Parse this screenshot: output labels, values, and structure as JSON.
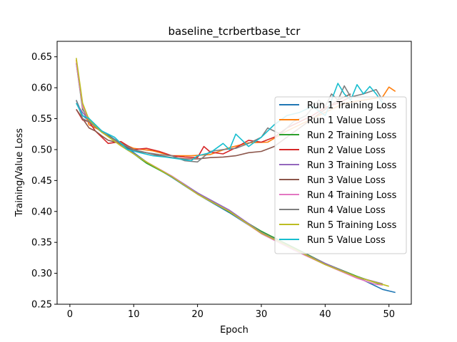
{
  "chart_data": {
    "type": "line",
    "title": "baseline_tcrbertbase_tcr",
    "xlabel": "Epoch",
    "ylabel": "Training/Value Loss",
    "xlim": [
      -2,
      53.5
    ],
    "ylim": [
      0.25,
      0.675
    ],
    "xticks": [
      0,
      10,
      20,
      30,
      40,
      50
    ],
    "yticks": [
      0.25,
      0.3,
      0.35,
      0.4,
      0.45,
      0.5,
      0.55,
      0.6,
      0.65
    ],
    "ytick_labels": [
      "0.25",
      "0.30",
      "0.35",
      "0.40",
      "0.45",
      "0.50",
      "0.55",
      "0.60",
      "0.65"
    ],
    "grid": false,
    "legend_position": "center-right",
    "series": [
      {
        "name": "Run 1 Training Loss",
        "color": "#1f77b4",
        "x": [
          1,
          2,
          3,
          5,
          8,
          12,
          16,
          20,
          25,
          30,
          35,
          40,
          45,
          49,
          51
        ],
        "values": [
          0.58,
          0.555,
          0.547,
          0.53,
          0.51,
          0.48,
          0.455,
          0.428,
          0.398,
          0.365,
          0.34,
          0.315,
          0.294,
          0.274,
          0.269
        ]
      },
      {
        "name": "Run 1 Value Loss",
        "color": "#ff7f0e",
        "x": [
          1,
          2,
          3,
          5,
          7,
          10,
          13,
          16,
          19,
          22,
          25,
          28,
          31,
          34,
          37,
          40,
          43,
          46,
          49,
          50,
          51
        ],
        "values": [
          0.645,
          0.57,
          0.54,
          0.53,
          0.515,
          0.502,
          0.498,
          0.49,
          0.49,
          0.492,
          0.503,
          0.511,
          0.512,
          0.53,
          0.545,
          0.56,
          0.575,
          0.58,
          0.585,
          0.601,
          0.594
        ]
      },
      {
        "name": "Run 2 Training Loss",
        "color": "#2ca02c",
        "x": [
          1,
          2,
          3,
          5,
          8,
          12,
          16,
          20,
          25,
          30,
          35,
          40,
          45,
          49
        ],
        "values": [
          0.64,
          0.565,
          0.55,
          0.53,
          0.508,
          0.478,
          0.456,
          0.43,
          0.399,
          0.368,
          0.342,
          0.316,
          0.295,
          0.281
        ]
      },
      {
        "name": "Run 2 Value Loss",
        "color": "#d62728",
        "x": [
          1,
          2,
          3,
          4,
          5,
          6,
          8,
          10,
          12,
          14,
          16,
          18,
          20,
          21,
          22,
          24,
          26,
          28,
          30,
          32,
          34,
          36,
          38,
          40,
          42,
          44
        ],
        "values": [
          0.565,
          0.548,
          0.545,
          0.53,
          0.52,
          0.51,
          0.513,
          0.5,
          0.502,
          0.497,
          0.49,
          0.488,
          0.487,
          0.505,
          0.496,
          0.493,
          0.503,
          0.515,
          0.512,
          0.52,
          0.535,
          0.545,
          0.555,
          0.568,
          0.575,
          0.585
        ]
      },
      {
        "name": "Run 3 Training Loss",
        "color": "#9467bd",
        "x": [
          1,
          2,
          3,
          5,
          8,
          12,
          16,
          20,
          25,
          30,
          35,
          40,
          45,
          49
        ],
        "values": [
          0.575,
          0.56,
          0.548,
          0.528,
          0.507,
          0.48,
          0.457,
          0.43,
          0.402,
          0.366,
          0.34,
          0.316,
          0.294,
          0.283
        ]
      },
      {
        "name": "Run 3 Value Loss",
        "color": "#8c564b",
        "x": [
          1,
          2,
          3,
          4,
          5,
          6,
          8,
          10,
          12,
          14,
          16,
          18,
          20,
          22,
          24,
          26,
          28,
          30,
          32,
          34,
          36,
          38,
          40,
          42,
          44
        ],
        "values": [
          0.565,
          0.55,
          0.535,
          0.53,
          0.522,
          0.515,
          0.51,
          0.498,
          0.495,
          0.49,
          0.487,
          0.485,
          0.485,
          0.487,
          0.488,
          0.49,
          0.495,
          0.497,
          0.505,
          0.52,
          0.535,
          0.55,
          0.565,
          0.58,
          0.59
        ]
      },
      {
        "name": "Run 4 Training Loss",
        "color": "#e377c2",
        "x": [
          1,
          2,
          3,
          5,
          8,
          12,
          16,
          20,
          25,
          30,
          35,
          40,
          45,
          48,
          49
        ],
        "values": [
          0.64,
          0.568,
          0.548,
          0.53,
          0.506,
          0.48,
          0.457,
          0.428,
          0.4,
          0.364,
          0.338,
          0.314,
          0.292,
          0.282,
          0.281
        ]
      },
      {
        "name": "Run 4 Value Loss",
        "color": "#7f7f7f",
        "x": [
          1,
          2,
          3,
          5,
          8,
          10,
          12,
          14,
          16,
          18,
          20,
          22,
          24,
          26,
          28,
          30,
          31,
          33,
          35,
          37,
          39,
          40,
          41,
          42,
          43,
          44,
          46,
          48,
          49
        ],
        "values": [
          0.58,
          0.55,
          0.545,
          0.528,
          0.51,
          0.5,
          0.495,
          0.492,
          0.49,
          0.482,
          0.48,
          0.497,
          0.5,
          0.502,
          0.51,
          0.52,
          0.535,
          0.525,
          0.545,
          0.555,
          0.58,
          0.57,
          0.59,
          0.58,
          0.603,
          0.585,
          0.59,
          0.597,
          0.58
        ]
      },
      {
        "name": "Run 5 Training Loss",
        "color": "#bcbd22",
        "x": [
          1,
          2,
          3,
          5,
          8,
          12,
          16,
          20,
          25,
          30,
          35,
          40,
          45,
          49,
          50
        ],
        "values": [
          0.648,
          0.575,
          0.548,
          0.528,
          0.506,
          0.48,
          0.456,
          0.428,
          0.4,
          0.365,
          0.34,
          0.314,
          0.294,
          0.282,
          0.279
        ]
      },
      {
        "name": "Run 5 Value Loss",
        "color": "#17becf",
        "x": [
          1,
          2,
          3,
          5,
          7,
          9,
          11,
          13,
          15,
          17,
          19,
          20,
          22,
          24,
          25,
          26,
          28,
          30,
          32,
          34,
          36,
          38,
          40,
          41,
          42,
          43,
          44,
          45,
          46,
          47,
          48,
          49
        ],
        "values": [
          0.575,
          0.555,
          0.55,
          0.53,
          0.52,
          0.5,
          0.495,
          0.49,
          0.488,
          0.485,
          0.482,
          0.49,
          0.495,
          0.51,
          0.5,
          0.525,
          0.505,
          0.52,
          0.54,
          0.555,
          0.56,
          0.57,
          0.555,
          0.58,
          0.607,
          0.59,
          0.58,
          0.605,
          0.59,
          0.602,
          0.59,
          0.575
        ]
      }
    ]
  }
}
